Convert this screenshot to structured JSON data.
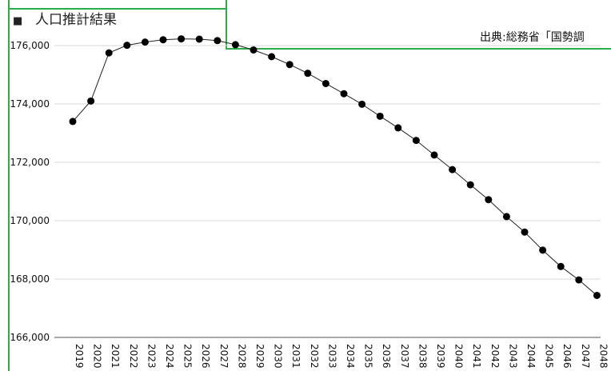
{
  "heading": {
    "marker": "■",
    "title": "人口推計結果"
  },
  "source": "出典:総務省「国勢調",
  "colors": {
    "frame": "#2eac4a",
    "line": "#222222",
    "grid": "#d9d9d9"
  },
  "chart_data": {
    "type": "line",
    "title": "人口推計結果",
    "xlabel": "",
    "ylabel": "",
    "ylim": [
      166000,
      176000
    ],
    "yticks": [
      166000,
      168000,
      170000,
      172000,
      174000,
      176000
    ],
    "ytick_labels": [
      "166,000",
      "168,000",
      "170,000",
      "172,000",
      "174,000",
      "176,000"
    ],
    "grid": true,
    "x": [
      "2019",
      "2020",
      "2021",
      "2022",
      "2023",
      "2024",
      "2025",
      "2026",
      "2027",
      "2028",
      "2029",
      "2030",
      "2031",
      "2032",
      "2033",
      "2034",
      "2035",
      "2036",
      "2037",
      "2038",
      "2039",
      "2040",
      "2041",
      "2042",
      "2043",
      "2044",
      "2045",
      "2046",
      "2047",
      "2048"
    ],
    "series": [
      {
        "values": [
          173400,
          174100,
          175750,
          176010,
          176120,
          176200,
          176230,
          176220,
          176170,
          176030,
          175850,
          175620,
          175350,
          175050,
          174700,
          174350,
          173990,
          173580,
          173180,
          172750,
          172250,
          171750,
          171230,
          170720,
          170140,
          169610,
          168990,
          168430,
          167970,
          167440
        ]
      }
    ]
  }
}
